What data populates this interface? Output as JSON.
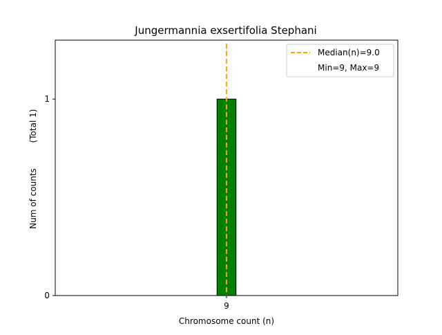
{
  "chart_data": {
    "type": "bar",
    "title": "Jungermannia exsertifolia Stephani",
    "xlabel": "Chromosome count (n)",
    "ylabel": "Num of counts",
    "ylabel_total": "(Total 1)",
    "categories": [
      "9"
    ],
    "values": [
      1
    ],
    "xlim": [
      0,
      18
    ],
    "ylim": [
      0,
      1.3
    ],
    "yticks": [
      "0",
      "1"
    ],
    "bar_color": "#008000",
    "bar_edge_color": "#000000",
    "median": 9.0,
    "median_color": "#ffa500",
    "legend": {
      "position": "top-right",
      "entries": [
        "Median(n)=9.0",
        "Min=9, Max=9"
      ]
    },
    "grid": false
  }
}
